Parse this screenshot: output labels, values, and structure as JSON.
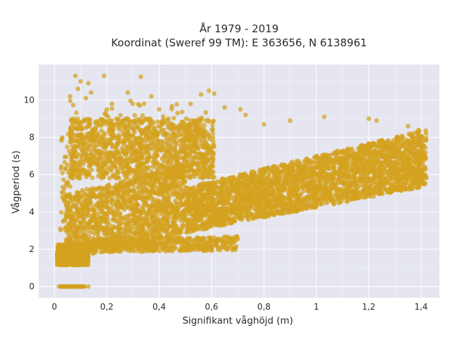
{
  "chart_data": {
    "type": "scatter",
    "title": [
      "År 1979 - 2019",
      "Koordinat (Sweref 99 TM): E 363656, N 6138961"
    ],
    "xlabel": "Signifikant våghöjd (m)",
    "ylabel": "Vågperiod (s)",
    "xlim": [
      -0.06,
      1.47
    ],
    "ylim": [
      -0.6,
      11.9
    ],
    "x_ticks": [
      0,
      0.2,
      0.4,
      0.6,
      0.8,
      1,
      1.2,
      1.4
    ],
    "x_tick_labels": [
      "0",
      "0,2",
      "0,4",
      "0,6",
      "0,8",
      "1",
      "1,2",
      "1,4"
    ],
    "y_ticks": [
      0,
      2,
      4,
      6,
      8,
      10
    ],
    "y_tick_labels": [
      "0",
      "2",
      "4",
      "6",
      "8",
      "10"
    ],
    "grid": true,
    "marker_color": "#d4a21f",
    "background_color": "#e5e6ef",
    "point_density_note_regions": [
      {
        "x_range": [
          0,
          0.12
        ],
        "y_range": [
          1.1,
          2.3
        ]
      },
      {
        "x_range": [
          0.05,
          1.42
        ],
        "y_range": [
          1.8,
          8.3
        ]
      }
    ],
    "series": [
      {
        "values_sample": [
          [
            0.02,
            0
          ],
          [
            0.04,
            0
          ],
          [
            0.06,
            0
          ],
          [
            0.08,
            0
          ],
          [
            0.1,
            0
          ],
          [
            0.12,
            0
          ],
          [
            0.05,
            1.6
          ],
          [
            0.08,
            1.8
          ],
          [
            0.12,
            2.1
          ],
          [
            0.2,
            2.4
          ],
          [
            0.3,
            2.8
          ],
          [
            0.1,
            3.8
          ],
          [
            0.2,
            4.5
          ],
          [
            0.3,
            5.0
          ],
          [
            0.4,
            4.8
          ],
          [
            0.5,
            5.3
          ],
          [
            0.6,
            5.5
          ],
          [
            0.7,
            5.8
          ],
          [
            0.8,
            6.0
          ],
          [
            0.9,
            6.2
          ],
          [
            1.0,
            6.5
          ],
          [
            1.1,
            6.7
          ],
          [
            1.2,
            7.0
          ],
          [
            1.3,
            7.2
          ],
          [
            1.4,
            7.5
          ],
          [
            0.1,
            10.9
          ],
          [
            0.12,
            11.2
          ],
          [
            0.2,
            11.3
          ],
          [
            0.33,
            11.2
          ],
          [
            0.6,
            10.5
          ],
          [
            0.62,
            10.3
          ],
          [
            1.02,
            9.1
          ],
          [
            1.2,
            9.0
          ],
          [
            0.18,
            2.0
          ],
          [
            0.4,
            2.4
          ],
          [
            0.6,
            2.4
          ],
          [
            0.7,
            2.5
          ]
        ]
      }
    ]
  }
}
